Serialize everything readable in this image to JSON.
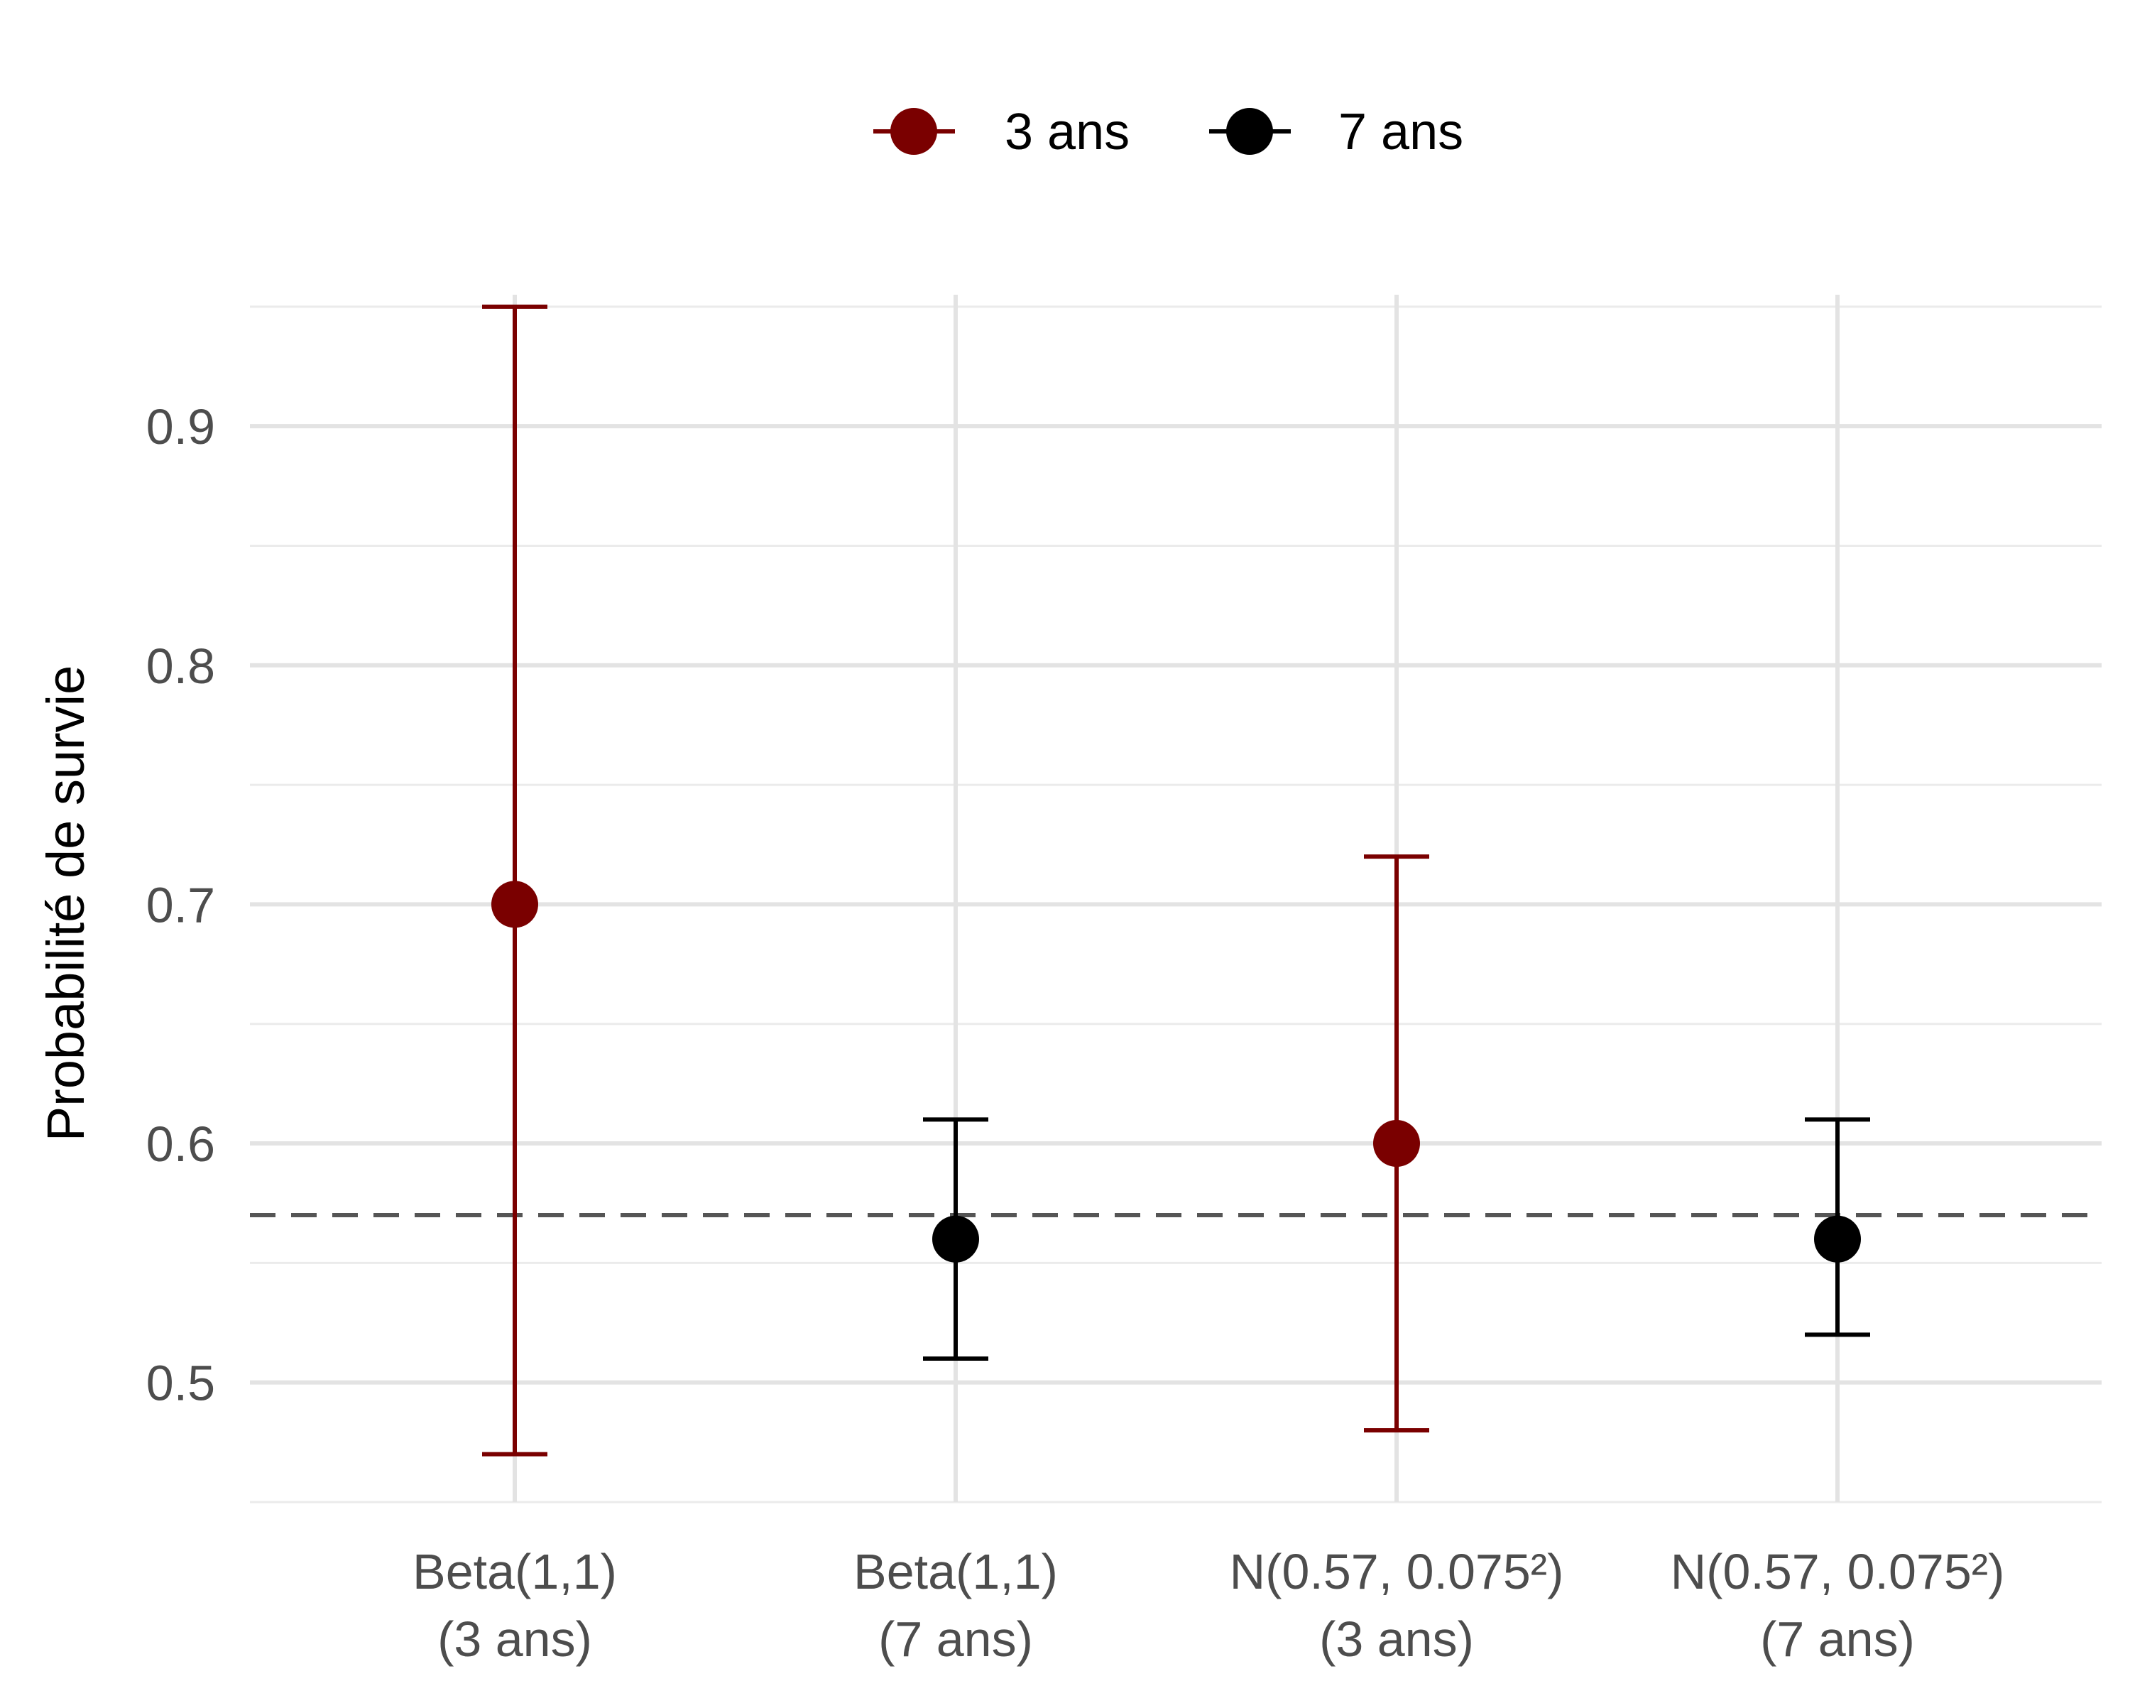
{
  "chart_data": {
    "type": "errorbar",
    "title": "",
    "xlabel": "",
    "ylabel": "Probabilité de survie",
    "ylim": [
      0.45,
      0.955
    ],
    "yticks": [
      "0.5",
      "0.6",
      "0.7",
      "0.8",
      "0.9"
    ],
    "grid": true,
    "legend_position": "top",
    "legend": [
      {
        "label": "3 ans",
        "color": "#7a0000"
      },
      {
        "label": "7 ans",
        "color": "#000000"
      }
    ],
    "categories": [
      [
        "Beta(1,1)",
        "(3 ans)"
      ],
      [
        "Beta(1,1)",
        "(7 ans)"
      ],
      [
        "N(0.57, 0.075²)",
        "(3 ans)"
      ],
      [
        "N(0.57, 0.075²)",
        "(7 ans)"
      ]
    ],
    "points": [
      {
        "group": "3 ans",
        "estimate": 0.7,
        "lower": 0.47,
        "upper": 0.95
      },
      {
        "group": "7 ans",
        "estimate": 0.56,
        "lower": 0.51,
        "upper": 0.61
      },
      {
        "group": "3 ans",
        "estimate": 0.6,
        "lower": 0.48,
        "upper": 0.72
      },
      {
        "group": "7 ans",
        "estimate": 0.56,
        "lower": 0.52,
        "upper": 0.61
      }
    ],
    "reference_line": {
      "y": 0.57,
      "style": "dashed",
      "color": "#555555"
    }
  }
}
